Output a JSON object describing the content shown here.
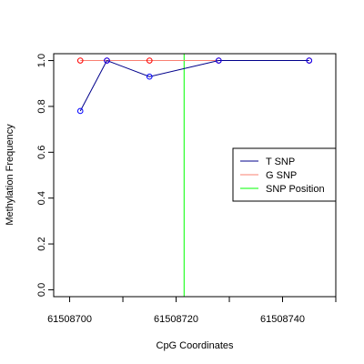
{
  "chart_data": {
    "type": "line",
    "title": "",
    "xlabel": "CpG Coordinates",
    "ylabel": "Methylation Frequency",
    "xlim": [
      61508697,
      61508750
    ],
    "ylim": [
      -0.03,
      1.03
    ],
    "x_ticks": [
      61508700,
      61508720,
      61508740
    ],
    "x_tick_labels": [
      "61508700",
      "61508720",
      "61508740"
    ],
    "x_minor_ticks": [
      61508700,
      61508710,
      61508720,
      61508730,
      61508740,
      61508750
    ],
    "y_ticks": [
      0.0,
      0.2,
      0.4,
      0.6,
      0.8,
      1.0
    ],
    "y_tick_labels": [
      "0.0",
      "0.2",
      "0.4",
      "0.6",
      "0.8",
      "1.0"
    ],
    "grid": false,
    "legend_position": "right",
    "series": [
      {
        "name": "T SNP",
        "color": "#00008B",
        "marker_color": "#0000FF",
        "x": [
          61508702,
          61508707,
          61508715,
          61508728,
          61508745
        ],
        "y": [
          0.78,
          1.0,
          0.93,
          1.0,
          1.0
        ]
      },
      {
        "name": "G SNP",
        "color": "#FA8072",
        "marker_color": "#FF0000",
        "x": [
          61508702,
          61508707,
          61508715,
          61508728,
          61508745
        ],
        "y": [
          1.0,
          1.0,
          1.0,
          1.0,
          1.0
        ]
      }
    ],
    "vlines": [
      {
        "name": "SNP Position",
        "x": 61508721.5,
        "color": "#00FF00"
      }
    ],
    "legend": [
      {
        "label": "T SNP",
        "color": "#00008B"
      },
      {
        "label": "G SNP",
        "color": "#FA8072"
      },
      {
        "label": "SNP Position",
        "color": "#00FF00"
      }
    ]
  }
}
